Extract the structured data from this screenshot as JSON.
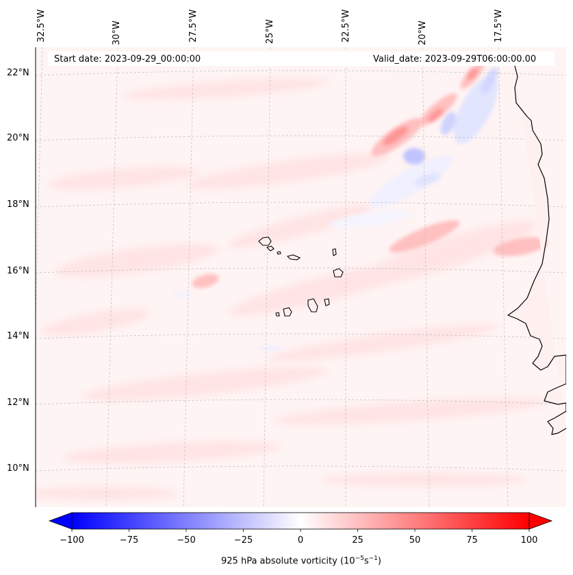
{
  "map": {
    "start_date": "Start date: 2023-09-29_00:00:00",
    "valid_date": "Valid_date: 2023-09-29T06:00:00.00",
    "lon_labels": [
      "32.5°W",
      "30°W",
      "27.5°W",
      "25°W",
      "22.5°W",
      "20°W",
      "17.5°W"
    ],
    "lat_labels": [
      "22°N",
      "20°N",
      "18°N",
      "16°N",
      "14°N",
      "12°N",
      "10°N"
    ],
    "gridlines": true,
    "colorbar": {
      "label_main": "925 hPa absolute vorticity (10",
      "label_exp1": "−5",
      "label_mid": "s",
      "label_exp2": "−1",
      "label_end": ")",
      "ticks": [
        "−100",
        "−75",
        "−50",
        "−25",
        "0",
        "25",
        "50",
        "75",
        "100"
      ],
      "range": [
        -100,
        100
      ],
      "levels": 40,
      "colormap": "bwr",
      "extend": "both"
    },
    "colors": {
      "negative": "#0000ff",
      "neutral": "#ffffff",
      "positive": "#ff0000",
      "coast": "#000000",
      "gridline": "#bbbbbb"
    }
  }
}
